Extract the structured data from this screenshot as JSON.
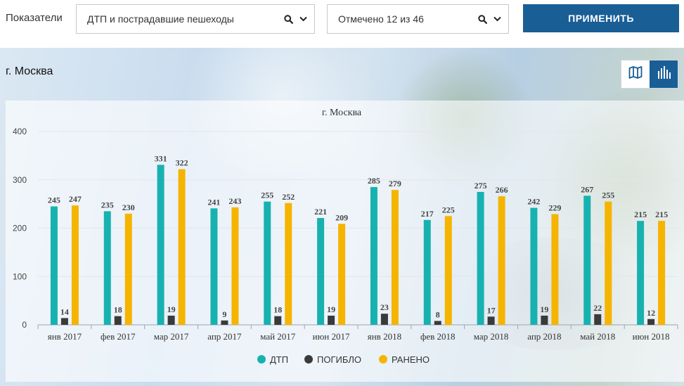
{
  "filters": {
    "indicators_label": "Показатели",
    "indicator_value": "ДТП и пострадавшие пешеходы",
    "regions_value": "Отмечено 12 из 46",
    "apply_label": "ПРИМЕНИТЬ"
  },
  "region_title": "г. Москва",
  "view_buttons": [
    {
      "name": "map-view-button",
      "icon": "map-icon",
      "active": false
    },
    {
      "name": "chart-view-button",
      "icon": "bar-chart-icon",
      "active": true
    }
  ],
  "colors": {
    "brand": "#1a5e96",
    "dtp": "#17b2b0",
    "killed": "#3a3a3a",
    "injured": "#f5b400"
  },
  "chart_data": {
    "type": "bar",
    "title": "г. Москва",
    "categories": [
      "янв 2017",
      "фев 2017",
      "мар 2017",
      "апр 2017",
      "май 2017",
      "июн 2017",
      "янв 2018",
      "фев 2018",
      "мар 2018",
      "апр 2018",
      "май 2018",
      "июн 2018"
    ],
    "series": [
      {
        "name": "ДТП",
        "color": "#17b2b0",
        "values": [
          245,
          235,
          331,
          241,
          255,
          221,
          285,
          217,
          275,
          242,
          267,
          215
        ]
      },
      {
        "name": "ПОГИБЛО",
        "color": "#3a3a3a",
        "values": [
          14,
          18,
          19,
          9,
          18,
          19,
          23,
          8,
          17,
          19,
          22,
          12
        ]
      },
      {
        "name": "РАНЕНО",
        "color": "#f5b400",
        "values": [
          247,
          230,
          322,
          243,
          252,
          209,
          279,
          225,
          266,
          229,
          255,
          215
        ]
      }
    ],
    "yticks": [
      "0",
      "100",
      "200",
      "300",
      "400"
    ],
    "ylim": [
      0,
      400
    ],
    "xlabel": "",
    "ylabel": "",
    "grid": true,
    "legend_position": "bottom-center"
  }
}
